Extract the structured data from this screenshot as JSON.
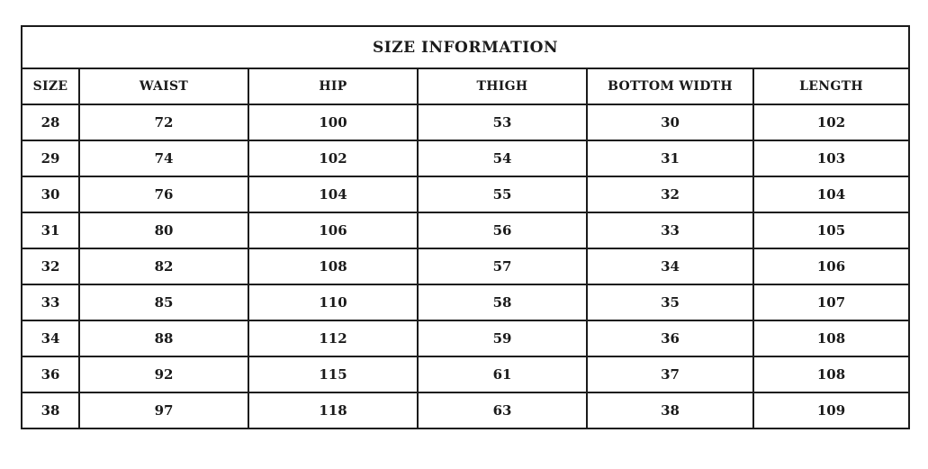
{
  "table": {
    "title": "SIZE INFORMATION",
    "columns": [
      "SIZE",
      "WAIST",
      "HIP",
      "THIGH",
      "BOTTOM WIDTH",
      "LENGTH"
    ],
    "rows": [
      [
        "28",
        "72",
        "100",
        "53",
        "30",
        "102"
      ],
      [
        "29",
        "74",
        "102",
        "54",
        "31",
        "103"
      ],
      [
        "30",
        "76",
        "104",
        "55",
        "32",
        "104"
      ],
      [
        "31",
        "80",
        "106",
        "56",
        "33",
        "105"
      ],
      [
        "32",
        "82",
        "108",
        "57",
        "34",
        "106"
      ],
      [
        "33",
        "85",
        "110",
        "58",
        "35",
        "107"
      ],
      [
        "34",
        "88",
        "112",
        "59",
        "36",
        "108"
      ],
      [
        "36",
        "92",
        "115",
        "61",
        "37",
        "108"
      ],
      [
        "38",
        "97",
        "118",
        "63",
        "38",
        "109"
      ]
    ]
  },
  "colors": {
    "border": "#1b1b1b",
    "text": "#1a1a1a",
    "background": "#ffffff"
  }
}
